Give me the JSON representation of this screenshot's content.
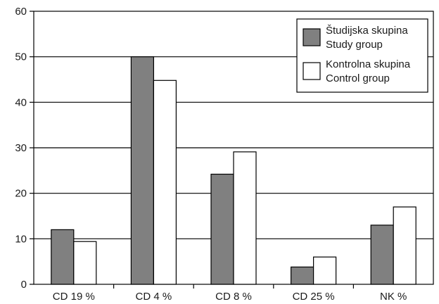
{
  "chart_data": {
    "type": "bar",
    "title": "",
    "xlabel": "",
    "ylabel": "",
    "categories": [
      "CD 19 %",
      "CD 4 %",
      "CD 8 %",
      "CD 25 %",
      "NK %"
    ],
    "series": [
      {
        "name": "Študijska skupina Study group",
        "name_lines": [
          "Študijska skupina",
          "Study group"
        ],
        "values": [
          12,
          50,
          24.2,
          3.8,
          13
        ],
        "color": "#808080"
      },
      {
        "name": "Kontrolna skupina Control group",
        "name_lines": [
          "Kontrolna skupina",
          "Control group"
        ],
        "values": [
          9.4,
          44.8,
          29.1,
          6,
          17
        ],
        "color": "#ffffff"
      }
    ],
    "ylim": [
      0,
      60
    ],
    "yticks": [
      0,
      10,
      20,
      30,
      40,
      50,
      60
    ],
    "grid": true,
    "legend_position": "top-right"
  }
}
